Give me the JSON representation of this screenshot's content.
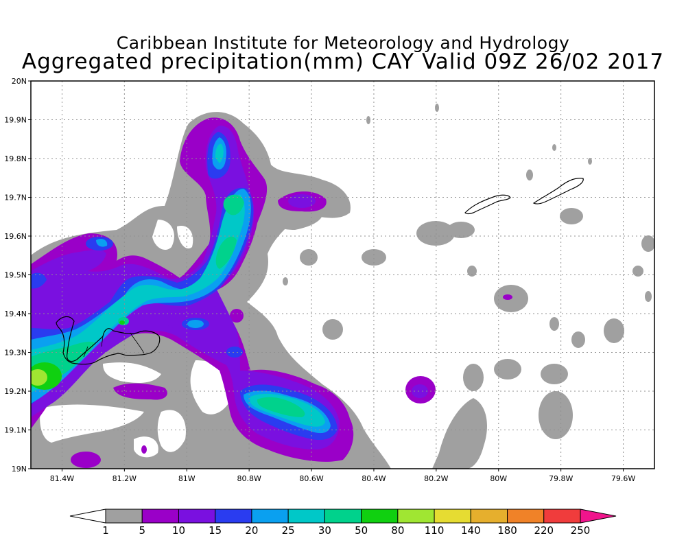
{
  "title": {
    "line1": "Caribbean Institute for Meteorology and Hydrology",
    "line2": "Aggregated precipitation(mm) CAY Valid 09Z 26/02 2017"
  },
  "map": {
    "lon_range": [
      -81.5,
      -79.5
    ],
    "lat_range": [
      19.0,
      20.0
    ],
    "grid": true,
    "lon_ticks": [
      "81.4W",
      "81.2W",
      "81W",
      "80.8W",
      "80.6W",
      "80.4W",
      "80.2W",
      "80W",
      "79.8W",
      "79.6W"
    ],
    "lon_tick_values": [
      -81.4,
      -81.2,
      -81.0,
      -80.8,
      -80.6,
      -80.4,
      -80.2,
      -80.0,
      -79.8,
      -79.6
    ],
    "lat_ticks": [
      "20N",
      "19.9N",
      "19.8N",
      "19.7N",
      "19.6N",
      "19.5N",
      "19.4N",
      "19.3N",
      "19.2N",
      "19.1N",
      "19N"
    ],
    "lat_tick_values": [
      20.0,
      19.9,
      19.8,
      19.7,
      19.6,
      19.5,
      19.4,
      19.3,
      19.2,
      19.1,
      19.0
    ],
    "islands": [
      "Grand Cayman",
      "Little Cayman",
      "Cayman Brac"
    ]
  },
  "colorbar": {
    "labels": [
      "1",
      "5",
      "10",
      "15",
      "20",
      "25",
      "30",
      "50",
      "80",
      "110",
      "140",
      "180",
      "220",
      "250"
    ],
    "colors": [
      "#a0a0a0",
      "#9a00c8",
      "#7a10e0",
      "#2a3cf0",
      "#0aa0f0",
      "#00c8c8",
      "#00d28c",
      "#10d010",
      "#a0e632",
      "#e6dc32",
      "#e6af2d",
      "#f08228",
      "#f03c3c",
      "#f0148c"
    ],
    "under_color": "#ffffff",
    "over_color": "#f0148c"
  },
  "colors": {
    "gray": "#a0a0a0",
    "purple": "#9a00c8",
    "violet": "#7a10e0",
    "blue": "#2a3cf0",
    "lightblue": "#0aa0f0",
    "cyan": "#00c8c8",
    "seagreen": "#00d28c",
    "green": "#10d010",
    "yellowgreen": "#a0e632"
  }
}
